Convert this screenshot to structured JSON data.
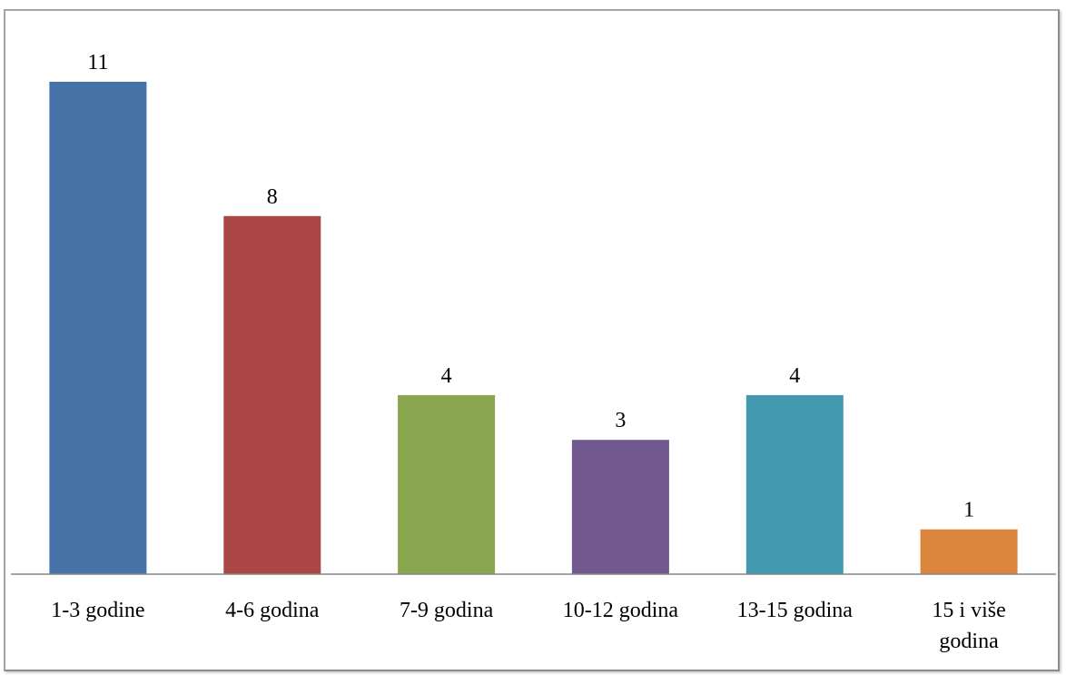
{
  "chart_data": {
    "type": "bar",
    "title": "",
    "xlabel": "",
    "ylabel": "",
    "categories": [
      "1-3 godine",
      "4-6 godina",
      "7-9 godina",
      "10-12 godina",
      "13-15 godina",
      "15 i više godina"
    ],
    "category_lines": [
      [
        "1-3 godine"
      ],
      [
        "4-6 godina"
      ],
      [
        "7-9 godina"
      ],
      [
        "10-12 godina"
      ],
      [
        "13-15 godina"
      ],
      [
        "15 i više",
        "godina"
      ]
    ],
    "values": [
      11,
      8,
      4,
      3,
      4,
      1
    ],
    "value_labels": [
      "11",
      "8",
      "4",
      "3",
      "4",
      "1"
    ],
    "colors": [
      "#4572a7",
      "#aa4643",
      "#89a54e",
      "#71588f",
      "#4198af",
      "#db843d"
    ],
    "ylim": [
      0,
      11
    ],
    "grid": false,
    "legend": "none"
  }
}
